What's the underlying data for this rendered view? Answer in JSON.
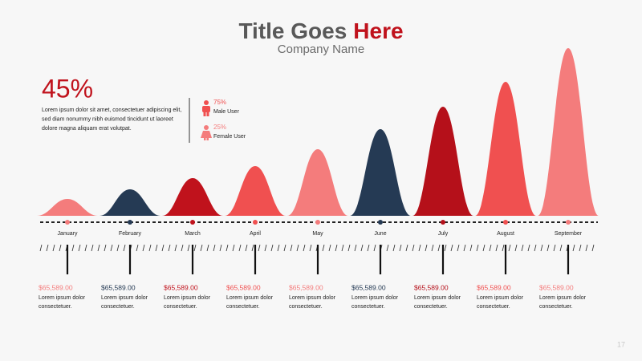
{
  "header": {
    "title": "Title Goes",
    "title_accent": "Here",
    "subtitle": "Company Name"
  },
  "stat": {
    "value": "45%",
    "text": [
      "Lorem ipsum dolor sit amet, consectetuer adipiscing elit,",
      "sed diam nonummy nibh euismod tincidunt ut laoreet",
      "dolore magna aliquam erat volutpat."
    ]
  },
  "users": [
    {
      "value": "75%",
      "label": "Male User"
    },
    {
      "value": "25%",
      "label": "Female User"
    }
  ],
  "months": [
    {
      "label": "January",
      "price": "$65,589.00",
      "text": [
        "Lorem ipsum dolor",
        "consectetuer."
      ]
    },
    {
      "label": "February",
      "price": "$65,589.00",
      "text": [
        "Lorem ipsum dolor",
        "consectetuer."
      ]
    },
    {
      "label": "March",
      "price": "$65,589.00",
      "text": [
        "Lorem ipsum dolor",
        "consectetuer."
      ]
    },
    {
      "label": "April",
      "price": "$65,589.00",
      "text": [
        "Lorem ipsum dolor",
        "consectetuer."
      ]
    },
    {
      "label": "May",
      "price": "$65,589.00",
      "text": [
        "Lorem ipsum dolor",
        "consectetuer."
      ]
    },
    {
      "label": "June",
      "price": "$65,589.00",
      "text": [
        "Lorem ipsum dolor",
        "consectetuer."
      ]
    },
    {
      "label": "July",
      "price": "$65,589.00",
      "text": [
        "Lorem ipsum dolor",
        "consectetuer."
      ]
    },
    {
      "label": "August",
      "price": "$65,589.00",
      "text": [
        "Lorem ipsum dolor",
        "consectetuer."
      ]
    },
    {
      "label": "September",
      "price": "$65,589.00",
      "text": [
        "Lorem ipsum dolor",
        "consectetuer."
      ]
    }
  ],
  "page_number": "17"
}
